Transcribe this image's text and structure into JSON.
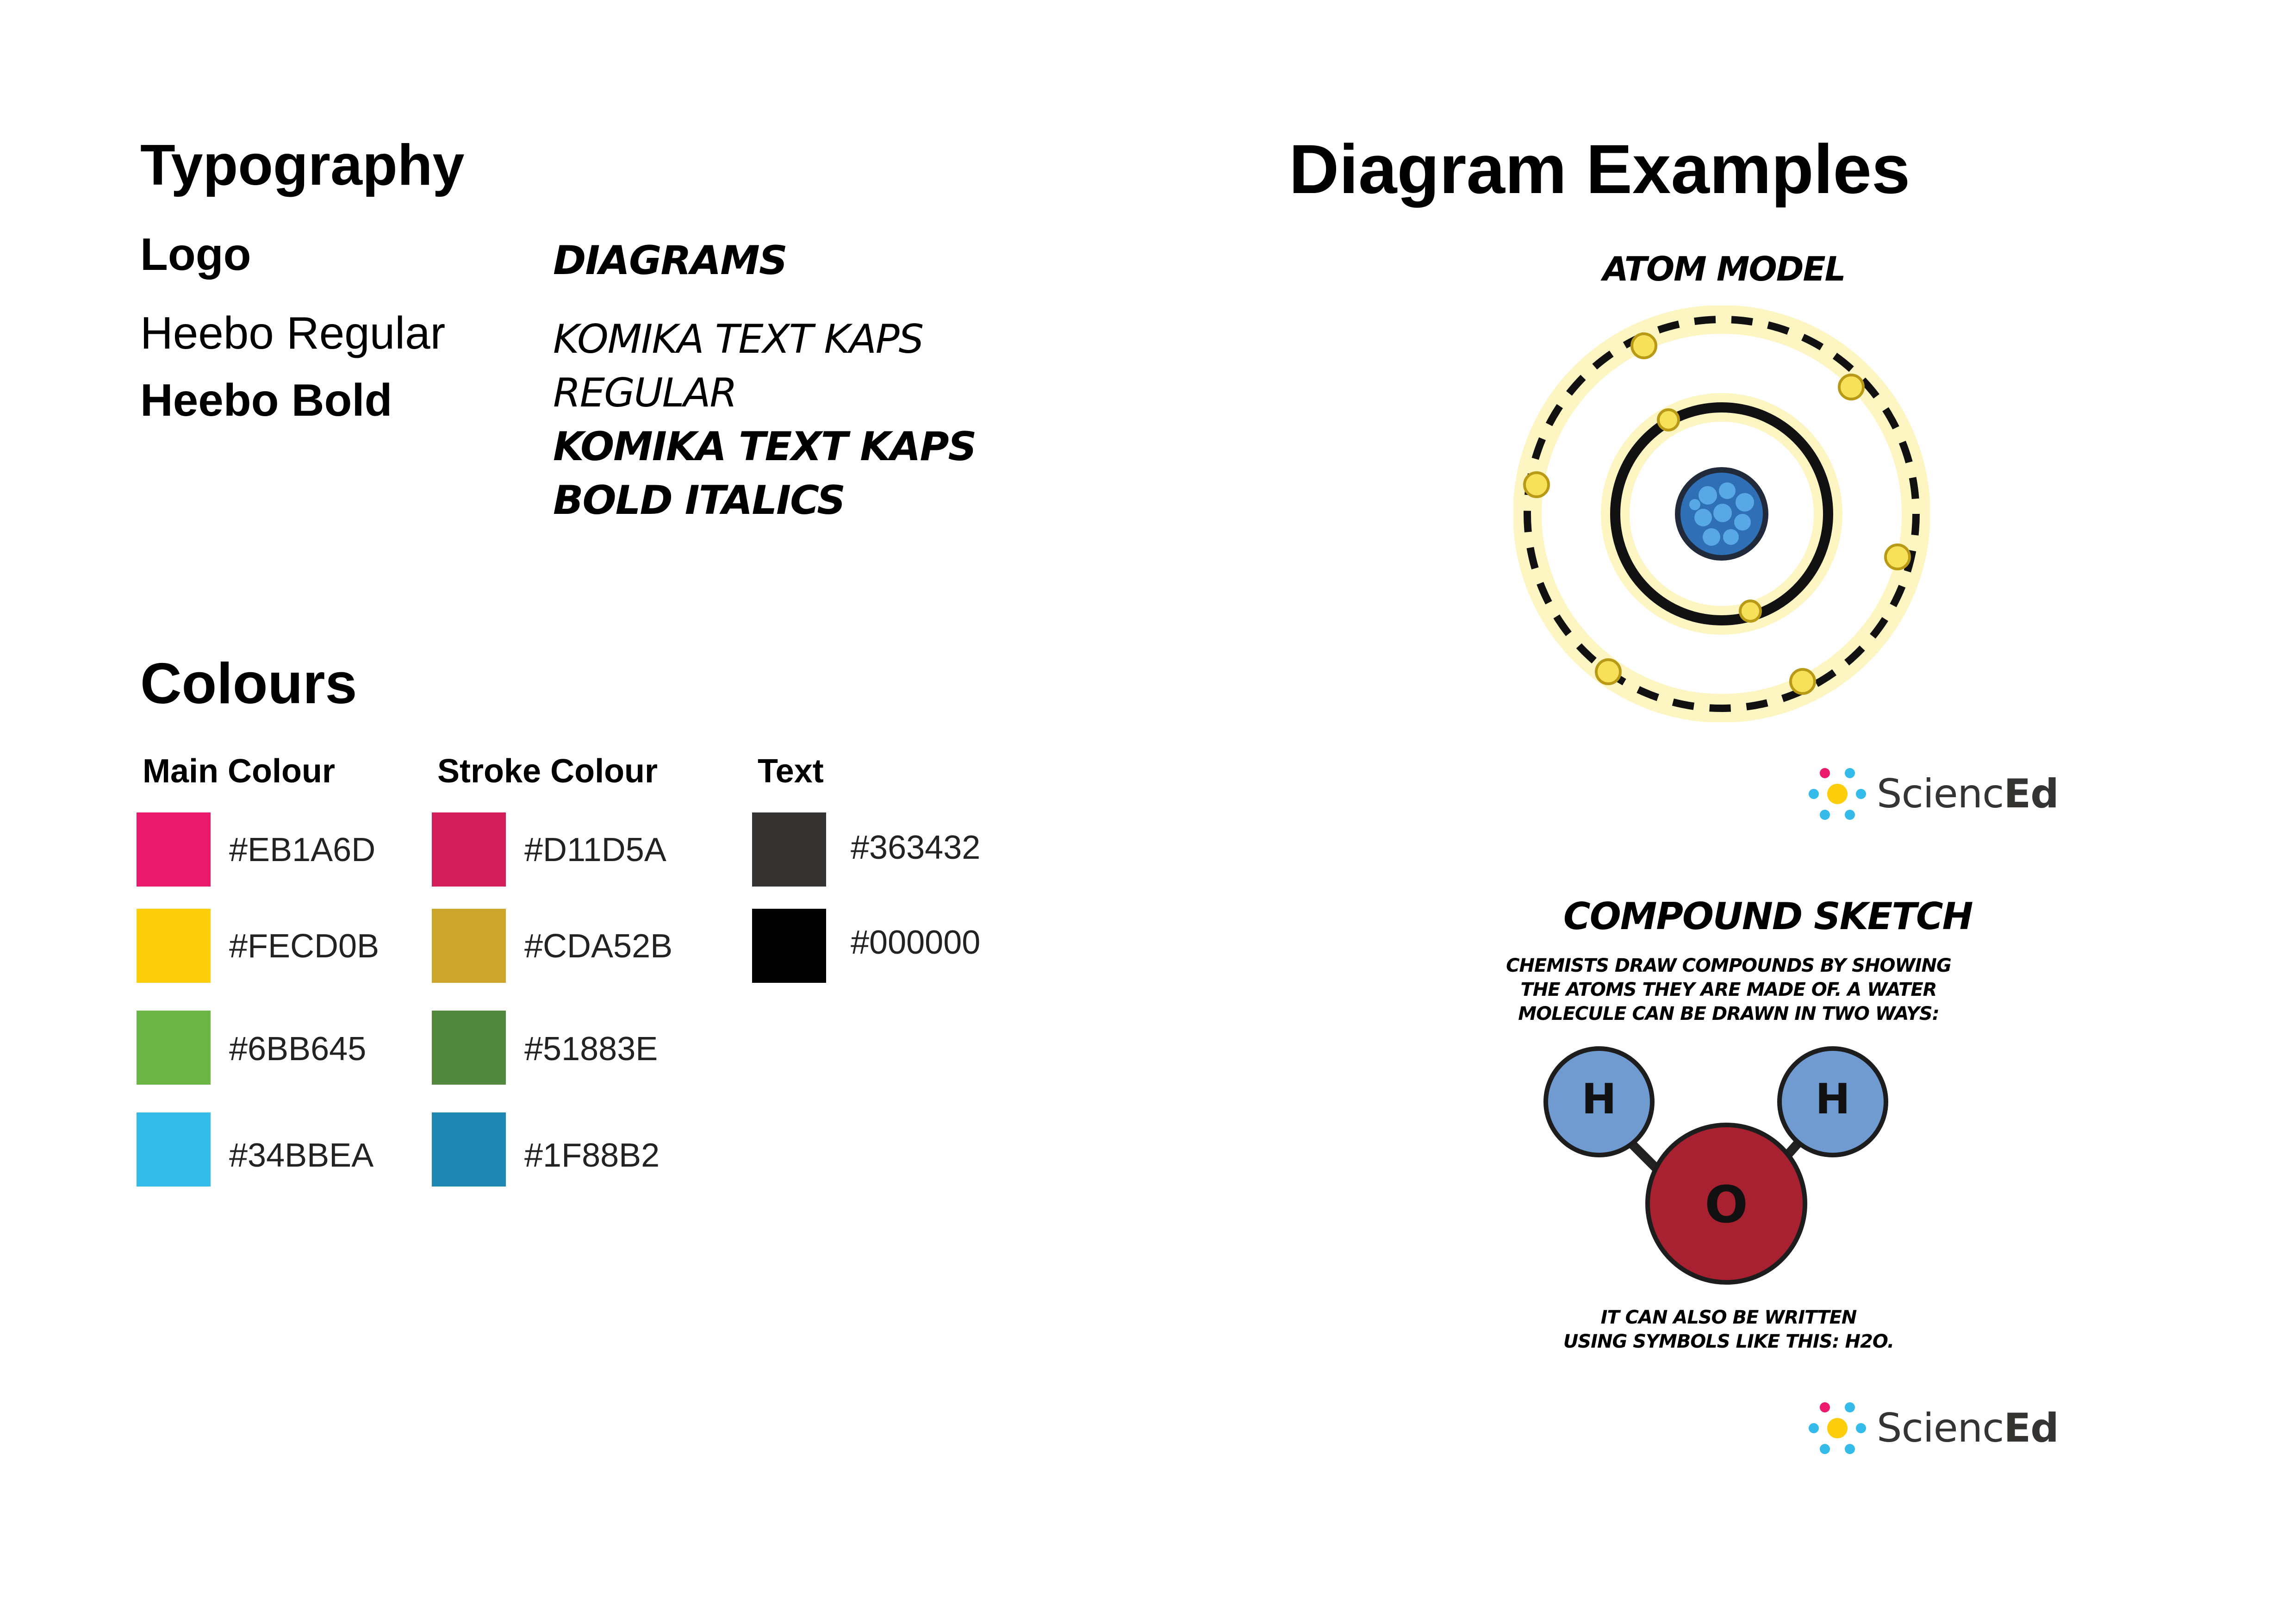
{
  "typography": {
    "heading": "Typography",
    "logo_label": "Logo",
    "heebo_regular": "Heebo Regular",
    "heebo_bold": "Heebo Bold",
    "diagrams_label": "DIAGRAMS",
    "komika_regular_1": "KOMIKA TEXT KAPS",
    "komika_regular_2": "REGULAR",
    "komika_bold_1": "KOMIKA TEXT KAPS",
    "komika_bold_2": "BOLD ITALICS"
  },
  "colours": {
    "heading": "Colours",
    "main_label": "Main Colour",
    "stroke_label": "Stroke Colour",
    "text_label": "Text",
    "main": [
      {
        "hex": "#EB1A6D",
        "color": "#EB1A6D"
      },
      {
        "hex": "#FECD0B",
        "color": "#FECD0B"
      },
      {
        "hex": "#6BB645",
        "color": "#6BB645"
      },
      {
        "hex": "#34BBEA",
        "color": "#34BBEA"
      }
    ],
    "stroke": [
      {
        "hex": "#D11D5A",
        "color": "#D11D5A"
      },
      {
        "hex": "#CDA52B",
        "color": "#CDA52B"
      },
      {
        "hex": "#51883E",
        "color": "#51883E"
      },
      {
        "hex": "#1F88B2",
        "color": "#1F88B2"
      }
    ],
    "text": [
      {
        "hex": "#363432",
        "color": "#363432"
      },
      {
        "hex": "#000000",
        "color": "#000000"
      }
    ]
  },
  "diagrams": {
    "heading": "Diagram Examples",
    "atom_title": "ATOM MODEL",
    "compound_title": "COMPOUND SKETCH",
    "compound_text_1": "CHEMISTS DRAW COMPOUNDS BY SHOWING",
    "compound_text_2": "THE ATOMS THEY ARE MADE OF. A WATER",
    "compound_text_3": "MOLECULE CAN BE DRAWN IN TWO WAYS:",
    "h_label": "H",
    "o_label": "O",
    "footer_text_1": "IT CAN ALSO BE WRITTEN",
    "footer_text_2": "USING SYMBOLS LIKE THIS: H2O.",
    "logo_word_light": "Scienc",
    "logo_word_bold": "Ed"
  }
}
